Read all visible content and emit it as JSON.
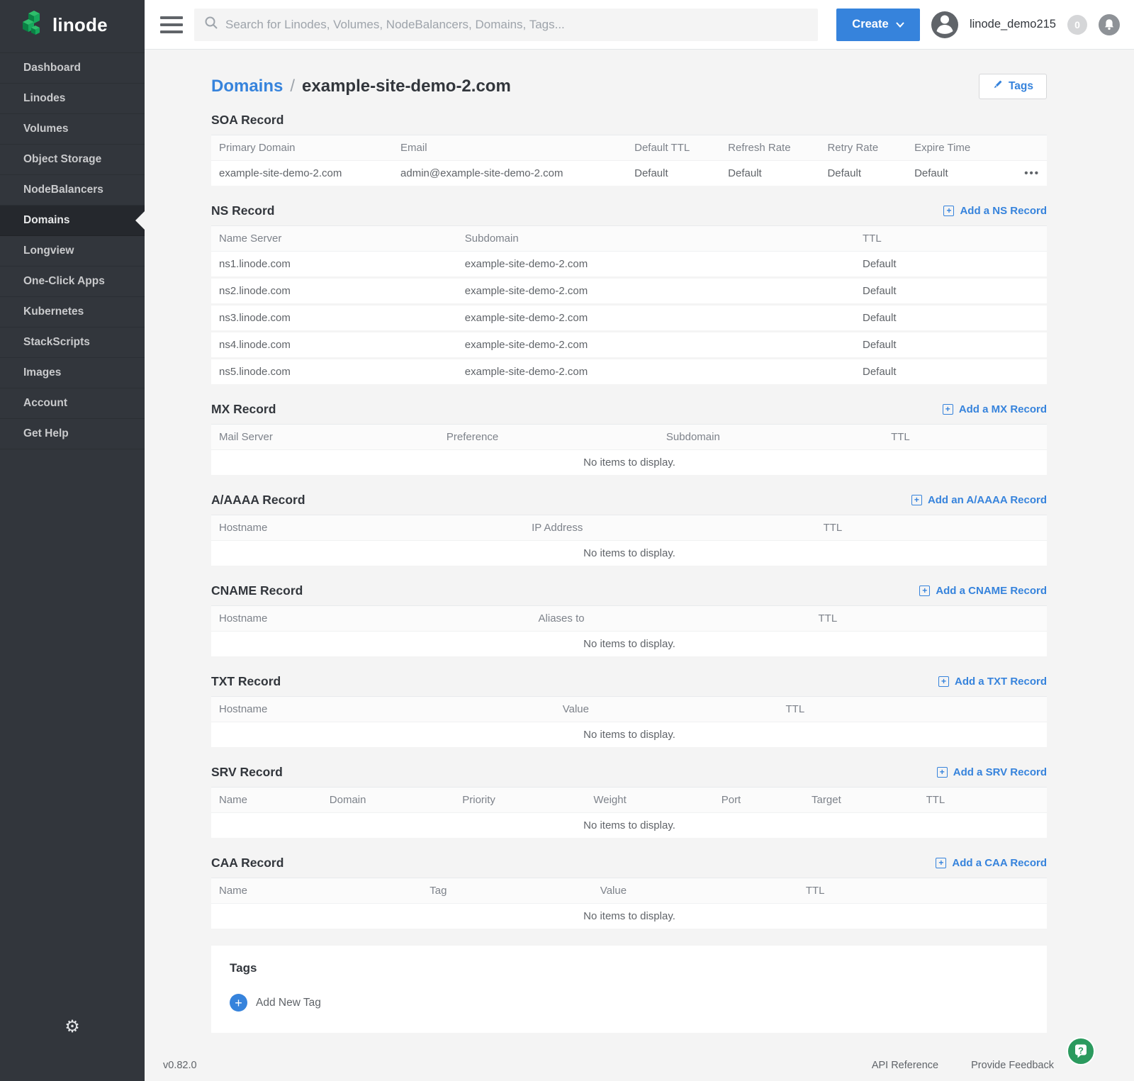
{
  "app": {
    "brand": "linode"
  },
  "colors": {
    "accent_blue": "#3683dc",
    "sidebar_dark": "#32363c",
    "page_bg": "#f4f4f4",
    "help_green": "#2b9a5e",
    "logo_green": "#1cb35c"
  },
  "icons": {
    "hamburger": "menu-bars",
    "search": "magnifier",
    "chevron_down": "v",
    "avatar": "person",
    "bell": "bell",
    "pencil": "pencil",
    "plus": "+",
    "ellipsis": "•••",
    "add_circle_plus": "+",
    "gear": "⚙",
    "help": "?"
  },
  "topbar": {
    "search_placeholder": "Search for Linodes, Volumes, NodeBalancers, Domains, Tags...",
    "create_label": "Create",
    "username": "linode_demo215",
    "notification_count": "0"
  },
  "sidebar": {
    "active": "Domains",
    "items": [
      {
        "label": "Dashboard"
      },
      {
        "label": "Linodes"
      },
      {
        "label": "Volumes"
      },
      {
        "label": "Object Storage"
      },
      {
        "label": "NodeBalancers"
      },
      {
        "label": "Domains"
      },
      {
        "label": "Longview"
      },
      {
        "label": "One-Click Apps"
      },
      {
        "label": "Kubernetes"
      },
      {
        "label": "StackScripts"
      },
      {
        "label": "Images"
      },
      {
        "label": "Account"
      },
      {
        "label": "Get Help"
      }
    ]
  },
  "breadcrumb": {
    "section": "Domains",
    "separator": "/",
    "current": "example-site-demo-2.com"
  },
  "tags_button_label": "Tags",
  "sections": [
    {
      "id": "soa",
      "title": "SOA Record",
      "add_label": null,
      "columns": [
        "Primary Domain",
        "Email",
        "Default TTL",
        "Refresh Rate",
        "Retry Rate",
        "Expire Time"
      ],
      "rows": [
        [
          "example-site-demo-2.com",
          "admin@example-site-demo-2.com",
          "Default",
          "Default",
          "Default",
          "Default"
        ]
      ],
      "has_row_actions": true
    },
    {
      "id": "ns",
      "title": "NS Record",
      "add_label": "Add a NS Record",
      "columns": [
        "Name Server",
        "Subdomain",
        "TTL"
      ],
      "rows": [
        [
          "ns1.linode.com",
          "example-site-demo-2.com",
          "Default"
        ],
        [
          "ns2.linode.com",
          "example-site-demo-2.com",
          "Default"
        ],
        [
          "ns3.linode.com",
          "example-site-demo-2.com",
          "Default"
        ],
        [
          "ns4.linode.com",
          "example-site-demo-2.com",
          "Default"
        ],
        [
          "ns5.linode.com",
          "example-site-demo-2.com",
          "Default"
        ]
      ]
    },
    {
      "id": "mx",
      "title": "MX Record",
      "add_label": "Add a MX Record",
      "columns": [
        "Mail Server",
        "Preference",
        "Subdomain",
        "TTL"
      ],
      "rows": [],
      "empty_text": "No items to display."
    },
    {
      "id": "aaaa",
      "title": "A/AAAA Record",
      "add_label": "Add an A/AAAA Record",
      "columns": [
        "Hostname",
        "IP Address",
        "TTL"
      ],
      "rows": [],
      "empty_text": "No items to display."
    },
    {
      "id": "cname",
      "title": "CNAME Record",
      "add_label": "Add a CNAME Record",
      "columns": [
        "Hostname",
        "Aliases to",
        "TTL"
      ],
      "rows": [],
      "empty_text": "No items to display."
    },
    {
      "id": "txt",
      "title": "TXT Record",
      "add_label": "Add a TXT Record",
      "columns": [
        "Hostname",
        "Value",
        "TTL"
      ],
      "rows": [],
      "empty_text": "No items to display."
    },
    {
      "id": "srv",
      "title": "SRV Record",
      "add_label": "Add a SRV Record",
      "columns": [
        "Name",
        "Domain",
        "Priority",
        "Weight",
        "Port",
        "Target",
        "TTL"
      ],
      "rows": [],
      "empty_text": "No items to display."
    },
    {
      "id": "caa",
      "title": "CAA Record",
      "add_label": "Add a CAA Record",
      "columns": [
        "Name",
        "Tag",
        "Value",
        "TTL"
      ],
      "rows": [],
      "empty_text": "No items to display."
    }
  ],
  "tags_card": {
    "title": "Tags",
    "add_new_label": "Add New Tag"
  },
  "footer": {
    "version": "v0.82.0",
    "links": [
      "API Reference",
      "Provide Feedback"
    ]
  }
}
